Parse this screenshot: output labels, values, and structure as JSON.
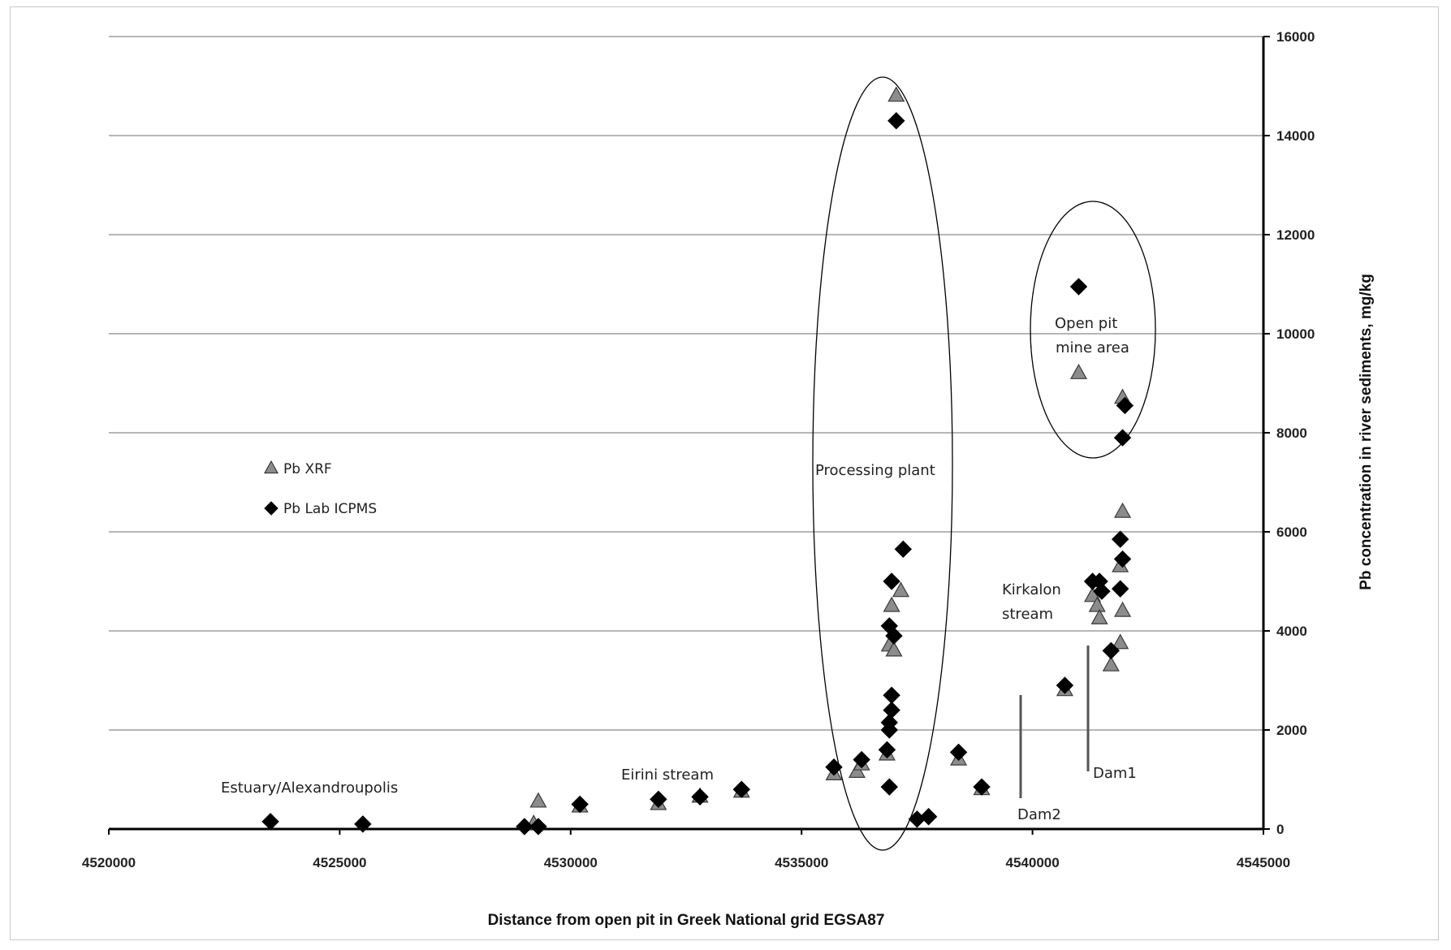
{
  "chart_data": {
    "type": "scatter",
    "title": "",
    "xlabel": "Distance from open pit in Greek National grid  EGSA87",
    "ylabel": "Pb concentration in river sediments, mg/kg",
    "xlim": [
      4520000,
      4545000
    ],
    "ylim": [
      0,
      16000
    ],
    "x_ticks": [
      "4520000",
      "4525000",
      "4530000",
      "4535000",
      "4540000",
      "4545000"
    ],
    "y_ticks": [
      "0",
      "2000",
      "4000",
      "6000",
      "8000",
      "10000",
      "12000",
      "14000",
      "16000"
    ],
    "y_axis_side": "right",
    "grid": "horizontal",
    "legend_position": "left-middle",
    "series": [
      {
        "name": "Pb XRF",
        "marker": "triangle",
        "color": "#8c8c8c",
        "points": [
          [
            4529300,
            550
          ],
          [
            4529200,
            100
          ],
          [
            4530200,
            450
          ],
          [
            4531900,
            500
          ],
          [
            4532800,
            650
          ],
          [
            4533700,
            750
          ],
          [
            4535700,
            1100
          ],
          [
            4536200,
            1150
          ],
          [
            4536300,
            1300
          ],
          [
            4536850,
            1500
          ],
          [
            4536900,
            3700
          ],
          [
            4536950,
            4500
          ],
          [
            4537000,
            3600
          ],
          [
            4537150,
            4800
          ],
          [
            4537050,
            14800
          ],
          [
            4538400,
            1400
          ],
          [
            4538900,
            800
          ],
          [
            4540700,
            2800
          ],
          [
            4541000,
            9200
          ],
          [
            4541300,
            4700
          ],
          [
            4541400,
            4500
          ],
          [
            4541450,
            4250
          ],
          [
            4541700,
            3300
          ],
          [
            4541900,
            3750
          ],
          [
            4541950,
            4400
          ],
          [
            4541900,
            5300
          ],
          [
            4541950,
            6400
          ],
          [
            4541950,
            8700
          ]
        ]
      },
      {
        "name": "Pb Lab ICPMS",
        "marker": "diamond",
        "color": "#000000",
        "points": [
          [
            4523500,
            150
          ],
          [
            4525500,
            100
          ],
          [
            4529000,
            50
          ],
          [
            4529300,
            50
          ],
          [
            4530200,
            500
          ],
          [
            4531900,
            600
          ],
          [
            4532800,
            650
          ],
          [
            4533700,
            800
          ],
          [
            4535700,
            1250
          ],
          [
            4536300,
            1400
          ],
          [
            4536850,
            1600
          ],
          [
            4536900,
            850
          ],
          [
            4536900,
            2000
          ],
          [
            4536900,
            2150
          ],
          [
            4536950,
            2400
          ],
          [
            4536950,
            2700
          ],
          [
            4536900,
            4100
          ],
          [
            4537000,
            3900
          ],
          [
            4536950,
            5000
          ],
          [
            4537200,
            5650
          ],
          [
            4537050,
            14300
          ],
          [
            4537500,
            200
          ],
          [
            4537750,
            250
          ],
          [
            4538400,
            1550
          ],
          [
            4538900,
            850
          ],
          [
            4540700,
            2900
          ],
          [
            4541000,
            10950
          ],
          [
            4541300,
            5000
          ],
          [
            4541450,
            5000
          ],
          [
            4541500,
            4800
          ],
          [
            4541700,
            3600
          ],
          [
            4541900,
            4850
          ],
          [
            4541950,
            5450
          ],
          [
            4541900,
            5850
          ],
          [
            4541950,
            7900
          ],
          [
            4542000,
            8550
          ]
        ]
      }
    ],
    "annotations": [
      {
        "text": "Estuary/Alexandroupolis"
      },
      {
        "text": "Eirini stream"
      },
      {
        "text": "Processing plant"
      },
      {
        "text": "Open pit"
      },
      {
        "text": "mine area"
      },
      {
        "text": "Kirkalon"
      },
      {
        "text": "stream"
      },
      {
        "text": "Dam2"
      },
      {
        "text": "Dam1"
      }
    ]
  }
}
